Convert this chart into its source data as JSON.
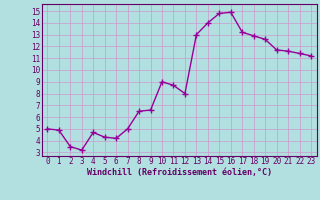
{
  "x": [
    0,
    1,
    2,
    3,
    4,
    5,
    6,
    7,
    8,
    9,
    10,
    11,
    12,
    13,
    14,
    15,
    16,
    17,
    18,
    19,
    20,
    21,
    22,
    23
  ],
  "y": [
    5.0,
    4.9,
    3.5,
    3.2,
    4.7,
    4.3,
    4.2,
    5.0,
    6.5,
    6.6,
    9.0,
    8.7,
    8.0,
    13.0,
    14.0,
    14.8,
    14.9,
    13.2,
    12.9,
    12.6,
    11.7,
    11.6,
    11.4,
    11.2
  ],
  "line_color": "#990099",
  "marker": "+",
  "marker_size": 4,
  "linewidth": 1.0,
  "bg_color": "#b2e0e0",
  "grid_color": "#cc99cc",
  "xlabel": "Windchill (Refroidissement éolien,°C)",
  "ylabel_ticks": [
    3,
    4,
    5,
    6,
    7,
    8,
    9,
    10,
    11,
    12,
    13,
    14,
    15
  ],
  "xlim": [
    -0.5,
    23.5
  ],
  "ylim": [
    2.7,
    15.6
  ],
  "axis_color": "#660066",
  "font_family": "monospace",
  "tick_fontsize": 5.5,
  "xlabel_fontsize": 6.0
}
